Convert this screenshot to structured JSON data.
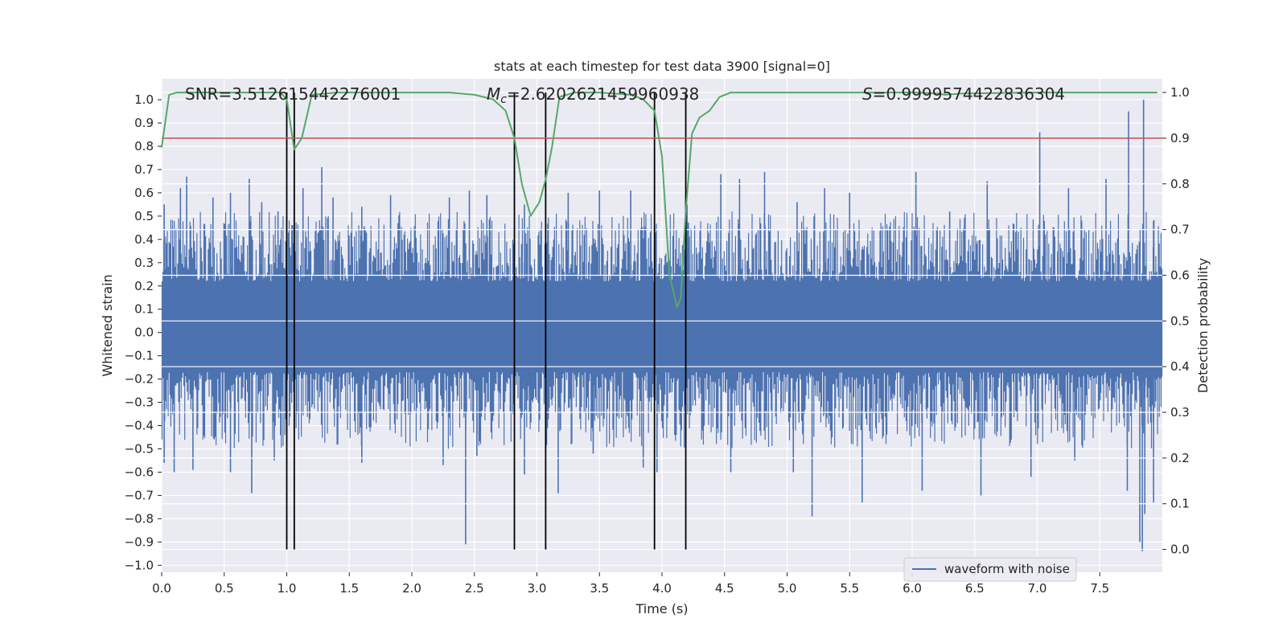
{
  "chart_data": {
    "type": "line",
    "title": "stats at each timestep for test data 3900 [signal=0]",
    "xlabel": "Time (s)",
    "ylabel_left": "Whitened strain",
    "ylabel_right": "Detection probability",
    "xlim": [
      0.0,
      8.0
    ],
    "ylim_left": [
      -1.03,
      1.09
    ],
    "ylim_right": [
      -0.05,
      1.03
    ],
    "x_ticks": [
      0.0,
      0.5,
      1.0,
      1.5,
      2.0,
      2.5,
      3.0,
      3.5,
      4.0,
      4.5,
      5.0,
      5.5,
      6.0,
      6.5,
      7.0,
      7.5
    ],
    "x_tick_labels": [
      "0.0",
      "0.5",
      "1.0",
      "1.5",
      "2.0",
      "2.5",
      "3.0",
      "3.5",
      "4.0",
      "4.5",
      "5.0",
      "5.5",
      "6.0",
      "6.5",
      "7.0",
      "7.5"
    ],
    "y_left_ticks": [
      -1.0,
      -0.9,
      -0.8,
      -0.7,
      -0.6,
      -0.5,
      -0.4,
      -0.3,
      -0.2,
      -0.1,
      0.0,
      0.1,
      0.2,
      0.3,
      0.4,
      0.5,
      0.6,
      0.7,
      0.8,
      0.9,
      1.0
    ],
    "y_left_tick_labels": [
      "−1.0",
      "−0.9",
      "−0.8",
      "−0.7",
      "−0.6",
      "−0.5",
      "−0.4",
      "−0.3",
      "−0.2",
      "−0.1",
      "0.0",
      "0.1",
      "0.2",
      "0.3",
      "0.4",
      "0.5",
      "0.6",
      "0.7",
      "0.8",
      "0.9",
      "1.0"
    ],
    "y_right_ticks": [
      0.0,
      0.1,
      0.2,
      0.3,
      0.4,
      0.5,
      0.6,
      0.7,
      0.8,
      0.9,
      1.0
    ],
    "y_right_tick_labels": [
      "0.0",
      "0.1",
      "0.2",
      "0.3",
      "0.4",
      "0.5",
      "0.6",
      "0.7",
      "0.8",
      "0.9",
      "1.0"
    ],
    "annotations": {
      "snr": "SNR=3.512615442276001",
      "mc_symbol": "M",
      "mc_subscript": "c",
      "mc_value": "=2.6202621459960938",
      "s_symbol": "S",
      "s_value": "=0.9999574422836304"
    },
    "legend": {
      "label": "waveform with noise",
      "location": "lower-right"
    },
    "threshold": {
      "value": 0.9,
      "axis": "right",
      "color": "#c44e52"
    },
    "event_markers": {
      "x": [
        1.0,
        1.06,
        2.82,
        3.07,
        3.94,
        4.19
      ],
      "y_range": [
        0.0,
        1.0
      ],
      "color": "#000000"
    },
    "waveform": {
      "name": "waveform with noise",
      "color": "#4c72b0",
      "duration": 8.0,
      "band_low": -0.17,
      "band_high": 0.22,
      "spikes": [
        {
          "x": 0.02,
          "y": 0.55
        },
        {
          "x": 0.15,
          "y": 0.62
        },
        {
          "x": 0.2,
          "y": 0.67
        },
        {
          "x": 0.41,
          "y": 0.58
        },
        {
          "x": 0.55,
          "y": 0.6
        },
        {
          "x": 0.7,
          "y": 0.66
        },
        {
          "x": 0.8,
          "y": 0.56
        },
        {
          "x": 0.93,
          "y": 0.52
        },
        {
          "x": 1.13,
          "y": 0.62
        },
        {
          "x": 1.28,
          "y": 0.71
        },
        {
          "x": 1.37,
          "y": 0.58
        },
        {
          "x": 1.6,
          "y": 0.54
        },
        {
          "x": 1.83,
          "y": 0.59
        },
        {
          "x": 2.3,
          "y": 0.58
        },
        {
          "x": 2.46,
          "y": 0.61
        },
        {
          "x": 2.6,
          "y": 0.59
        },
        {
          "x": 2.9,
          "y": 0.55
        },
        {
          "x": 3.25,
          "y": 0.6
        },
        {
          "x": 3.5,
          "y": 0.61
        },
        {
          "x": 3.75,
          "y": 0.61
        },
        {
          "x": 4.2,
          "y": 0.55
        },
        {
          "x": 4.47,
          "y": 0.68
        },
        {
          "x": 4.62,
          "y": 0.66
        },
        {
          "x": 4.82,
          "y": 0.69
        },
        {
          "x": 5.08,
          "y": 0.56
        },
        {
          "x": 5.3,
          "y": 0.62
        },
        {
          "x": 5.5,
          "y": 0.6
        },
        {
          "x": 6.03,
          "y": 0.69
        },
        {
          "x": 6.3,
          "y": 0.52
        },
        {
          "x": 6.6,
          "y": 0.65
        },
        {
          "x": 7.02,
          "y": 0.86
        },
        {
          "x": 7.25,
          "y": 0.62
        },
        {
          "x": 7.55,
          "y": 0.66
        },
        {
          "x": 7.73,
          "y": 0.95
        },
        {
          "x": 7.85,
          "y": 1.0
        },
        {
          "x": 7.93,
          "y": 0.48
        },
        {
          "x": 0.02,
          "y": -0.56
        },
        {
          "x": 0.1,
          "y": -0.6
        },
        {
          "x": 0.25,
          "y": -0.59
        },
        {
          "x": 0.55,
          "y": -0.6
        },
        {
          "x": 0.72,
          "y": -0.69
        },
        {
          "x": 0.9,
          "y": -0.55
        },
        {
          "x": 1.6,
          "y": -0.56
        },
        {
          "x": 2.25,
          "y": -0.57
        },
        {
          "x": 2.43,
          "y": -0.91
        },
        {
          "x": 2.52,
          "y": -0.53
        },
        {
          "x": 2.9,
          "y": -0.61
        },
        {
          "x": 3.17,
          "y": -0.69
        },
        {
          "x": 3.45,
          "y": -0.52
        },
        {
          "x": 3.85,
          "y": -0.58
        },
        {
          "x": 3.96,
          "y": -0.6
        },
        {
          "x": 4.55,
          "y": -0.6
        },
        {
          "x": 5.05,
          "y": -0.6
        },
        {
          "x": 5.2,
          "y": -0.79
        },
        {
          "x": 5.6,
          "y": -0.73
        },
        {
          "x": 6.08,
          "y": -0.68
        },
        {
          "x": 6.55,
          "y": -0.7
        },
        {
          "x": 6.95,
          "y": -0.62
        },
        {
          "x": 7.3,
          "y": -0.55
        },
        {
          "x": 7.72,
          "y": -0.68
        },
        {
          "x": 7.82,
          "y": -0.9
        },
        {
          "x": 7.84,
          "y": -0.94
        },
        {
          "x": 7.86,
          "y": -0.78
        },
        {
          "x": 7.93,
          "y": -0.73
        }
      ]
    },
    "detection_probability": {
      "name": "detection probability",
      "color": "#55a868",
      "axis": "right",
      "x": [
        0.0,
        0.06,
        0.12,
        0.3,
        0.6,
        0.85,
        0.95,
        1.0,
        1.06,
        1.12,
        1.2,
        1.4,
        2.0,
        2.3,
        2.5,
        2.65,
        2.75,
        2.82,
        2.88,
        2.95,
        3.02,
        3.07,
        3.12,
        3.18,
        3.3,
        3.5,
        3.75,
        3.85,
        3.94,
        4.0,
        4.06,
        4.12,
        4.15,
        4.19,
        4.24,
        4.3,
        4.38,
        4.46,
        4.55,
        5.0,
        5.5,
        6.0,
        6.2,
        6.26,
        6.4,
        7.0,
        7.5,
        7.96
      ],
      "y": [
        0.88,
        0.995,
        1.0,
        1.0,
        1.0,
        1.0,
        1.0,
        0.985,
        0.875,
        0.9,
        0.995,
        1.0,
        1.0,
        1.0,
        0.995,
        0.985,
        0.96,
        0.9,
        0.8,
        0.73,
        0.76,
        0.81,
        0.88,
        0.99,
        1.0,
        1.0,
        0.995,
        0.985,
        0.96,
        0.86,
        0.6,
        0.53,
        0.55,
        0.74,
        0.91,
        0.945,
        0.96,
        0.99,
        1.0,
        1.0,
        1.0,
        1.0,
        0.998,
        0.995,
        0.998,
        1.0,
        1.0,
        1.0
      ]
    }
  }
}
